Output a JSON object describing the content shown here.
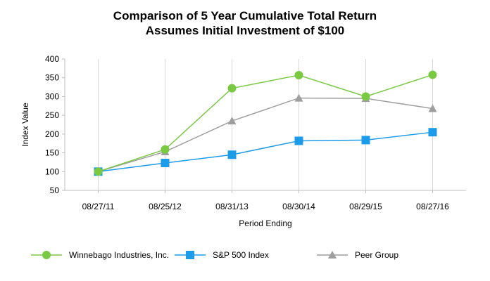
{
  "chart_data": {
    "type": "line",
    "title": "Comparison of 5 Year Cumulative Total Return",
    "subtitle": "Assumes Initial Investment of $100",
    "xlabel": "Period Ending",
    "ylabel": "Index Value",
    "categories": [
      "08/27/11",
      "08/25/12",
      "08/31/13",
      "08/30/14",
      "08/29/15",
      "08/27/16"
    ],
    "ylim": [
      50,
      400
    ],
    "yticks": [
      50,
      100,
      150,
      200,
      250,
      300,
      350,
      400
    ],
    "grid": "vertical",
    "legend": "bottom",
    "series": [
      {
        "name": "Winnebago Industries, Inc.",
        "color": "#7ac943",
        "marker": "circle",
        "values": [
          100,
          159,
          322,
          357,
          300,
          358
        ]
      },
      {
        "name": "S&P 500 Index",
        "color": "#1c9be8",
        "marker": "square",
        "values": [
          100,
          123,
          145,
          182,
          184,
          205
        ]
      },
      {
        "name": "Peer Group",
        "color": "#9e9e9e",
        "marker": "triangle",
        "values": [
          100,
          153,
          235,
          296,
          295,
          268
        ]
      }
    ]
  }
}
